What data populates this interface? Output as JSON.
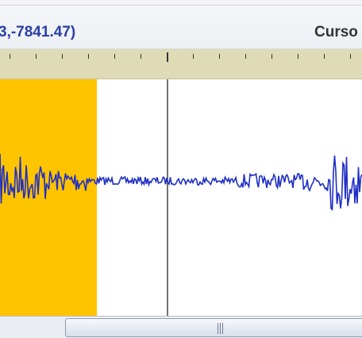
{
  "info_bar": {
    "selection_readout": "3,-7841.47)",
    "cursor_label": "Curso"
  },
  "colors": {
    "selection_highlight": "#ffc400",
    "waveform": "#1f2fc4",
    "ruler_background": "#dedbb6",
    "readout_text": "#2a3fa6"
  },
  "icons": {
    "scroll_grip": "grip-lines-icon"
  }
}
